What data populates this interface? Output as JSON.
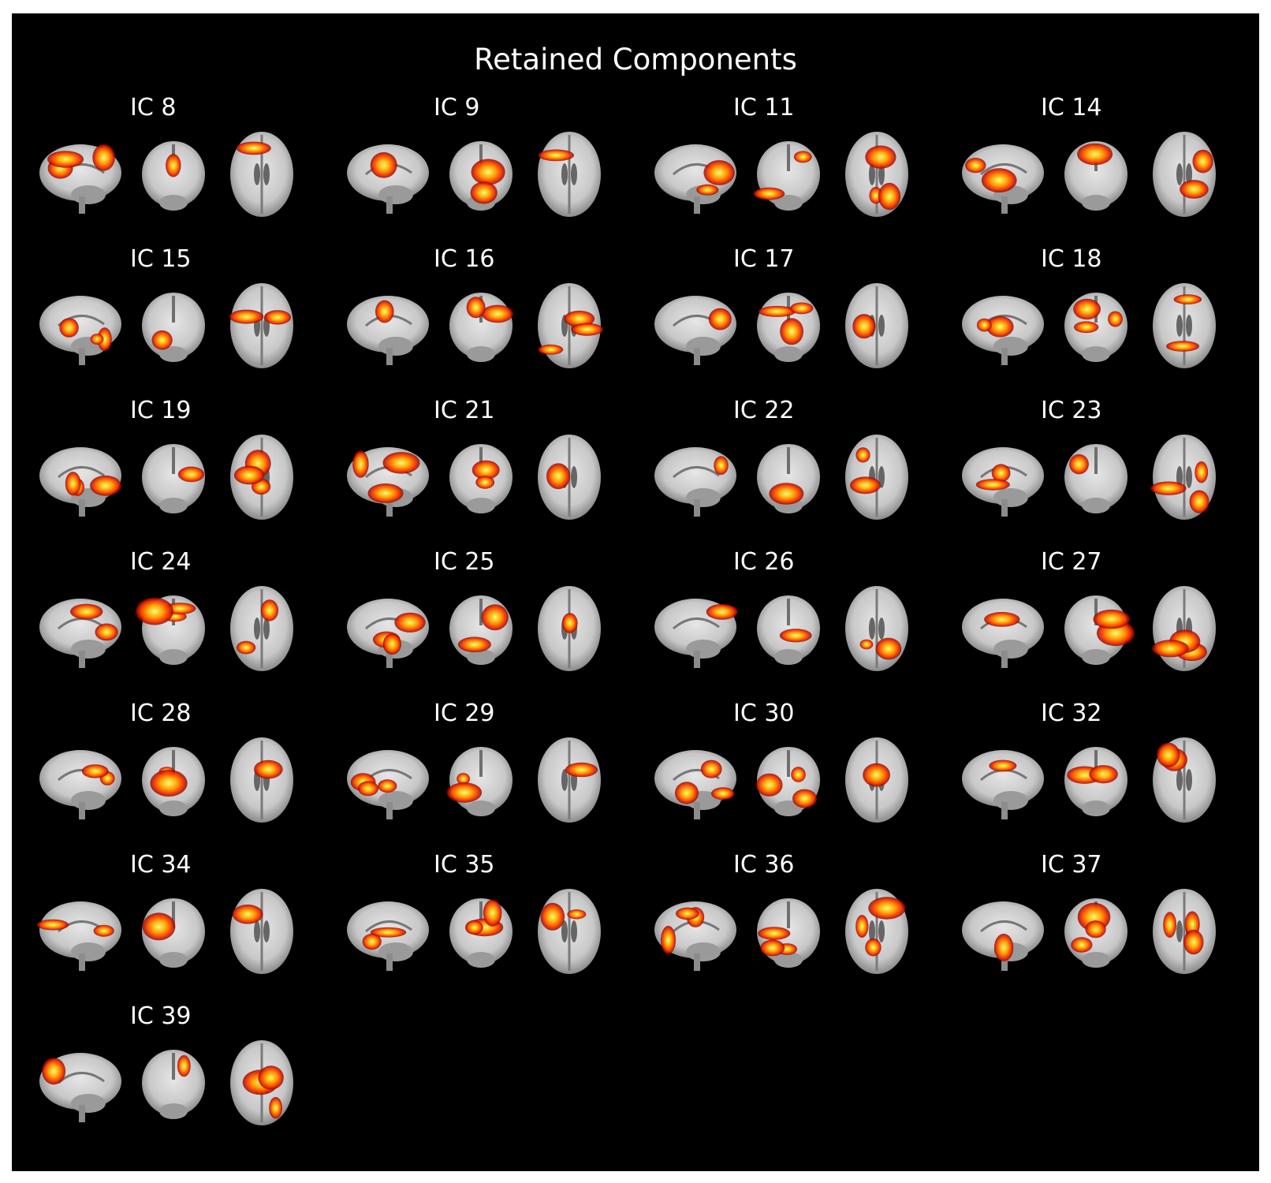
{
  "figure": {
    "title": "Retained Components",
    "background": "#000000",
    "colors": {
      "brain_tissue": "#c8c8c8",
      "activation_low": "#8b0000",
      "activation_mid": "#ff3c00",
      "activation_high": "#ffff66"
    },
    "view_order": [
      "sagittal",
      "coronal",
      "axial"
    ],
    "components": [
      {
        "label": "IC 8",
        "row": 0,
        "col": 0
      },
      {
        "label": "IC 9",
        "row": 0,
        "col": 1
      },
      {
        "label": "IC 11",
        "row": 0,
        "col": 2
      },
      {
        "label": "IC 14",
        "row": 0,
        "col": 3
      },
      {
        "label": "IC 15",
        "row": 1,
        "col": 0
      },
      {
        "label": "IC 16",
        "row": 1,
        "col": 1
      },
      {
        "label": "IC 17",
        "row": 1,
        "col": 2
      },
      {
        "label": "IC 18",
        "row": 1,
        "col": 3
      },
      {
        "label": "IC 19",
        "row": 2,
        "col": 0
      },
      {
        "label": "IC 21",
        "row": 2,
        "col": 1
      },
      {
        "label": "IC 22",
        "row": 2,
        "col": 2
      },
      {
        "label": "IC 23",
        "row": 2,
        "col": 3
      },
      {
        "label": "IC 24",
        "row": 3,
        "col": 0
      },
      {
        "label": "IC 25",
        "row": 3,
        "col": 1
      },
      {
        "label": "IC 26",
        "row": 3,
        "col": 2
      },
      {
        "label": "IC 27",
        "row": 3,
        "col": 3
      },
      {
        "label": "IC 28",
        "row": 4,
        "col": 0
      },
      {
        "label": "IC 29",
        "row": 4,
        "col": 1
      },
      {
        "label": "IC 30",
        "row": 4,
        "col": 2
      },
      {
        "label": "IC 32",
        "row": 4,
        "col": 3
      },
      {
        "label": "IC 34",
        "row": 5,
        "col": 0
      },
      {
        "label": "IC 35",
        "row": 5,
        "col": 1
      },
      {
        "label": "IC 36",
        "row": 5,
        "col": 2
      },
      {
        "label": "IC 37",
        "row": 5,
        "col": 3
      },
      {
        "label": "IC 39",
        "row": 6,
        "col": 0
      }
    ]
  }
}
